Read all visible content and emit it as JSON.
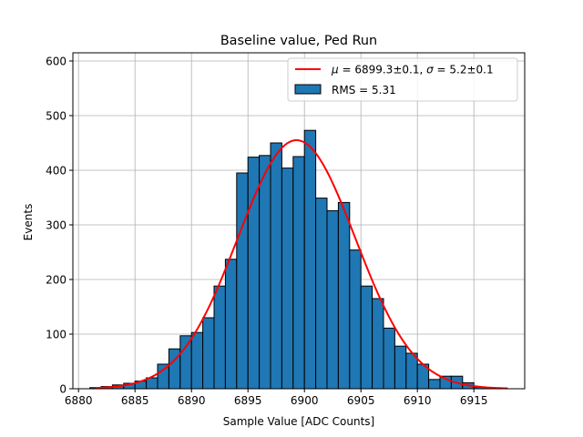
{
  "chart_data": {
    "type": "bar",
    "title": "Baseline value, Ped Run",
    "xlabel": "Sample Value [ADC Counts]",
    "ylabel": "Events",
    "xlim": [
      6879.5,
      6919.5
    ],
    "ylim": [
      0,
      615
    ],
    "grid": true,
    "xticks": [
      6880,
      6885,
      6890,
      6895,
      6900,
      6905,
      6910,
      6915
    ],
    "yticks": [
      0,
      100,
      200,
      300,
      400,
      500,
      600
    ],
    "legend_position": "top-right",
    "histogram": {
      "name": "RMS = 5.31",
      "color": "#1f77b4",
      "bin_width": 1,
      "bin_starts": [
        6881,
        6882,
        6883,
        6884,
        6885,
        6886,
        6887,
        6888,
        6889,
        6890,
        6891,
        6892,
        6893,
        6894,
        6895,
        6896,
        6897,
        6898,
        6899,
        6900,
        6901,
        6902,
        6903,
        6904,
        6905,
        6906,
        6907,
        6908,
        6909,
        6910,
        6911,
        6912,
        6913,
        6914,
        6915,
        6916
      ],
      "counts": [
        2,
        4,
        7,
        10,
        14,
        20,
        45,
        73,
        97,
        103,
        130,
        188,
        237,
        395,
        424,
        427,
        450,
        404,
        425,
        473,
        349,
        326,
        341,
        254,
        188,
        165,
        111,
        78,
        65,
        45,
        17,
        23,
        23,
        11,
        3,
        1
      ]
    },
    "fit": {
      "name": "μ = 6899.3±0.1, σ = 5.2±0.1",
      "color": "#ff0000",
      "mu": 6899.3,
      "sigma": 5.2,
      "amplitude": 455,
      "x_range": [
        6881.5,
        6918
      ]
    }
  },
  "legend": {
    "fit_prefix": "μ",
    "fit_eq1": " = 6899.3±0.1, ",
    "fit_sigma": "σ",
    "fit_eq2": " = 5.2±0.1",
    "hist_label": "RMS = 5.31"
  }
}
